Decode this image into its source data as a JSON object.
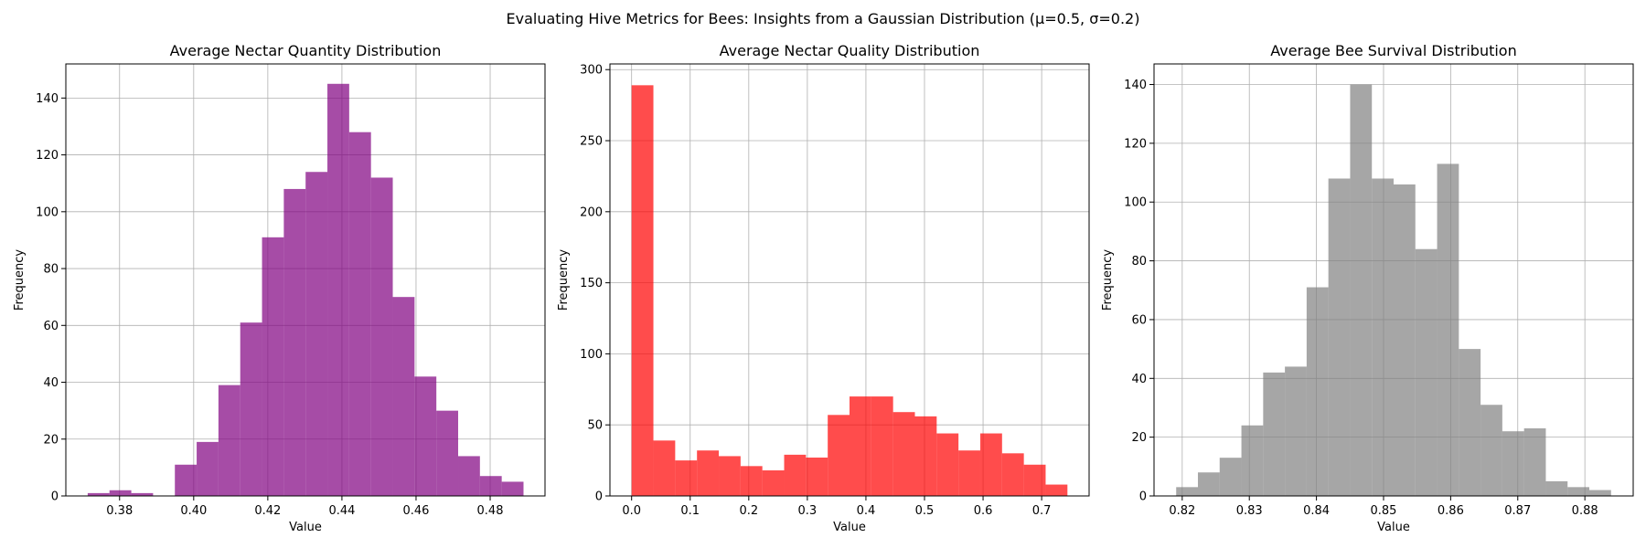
{
  "figure": {
    "suptitle": "Evaluating Hive Metrics for Bees: Insights from a Gaussian Distribution (μ=0.5, σ=0.2)"
  },
  "chart_data": [
    {
      "type": "bar",
      "title": "Average Nectar Quantity Distribution",
      "xlabel": "Value",
      "ylabel": "Frequency",
      "color": "#800080",
      "alpha": 0.7,
      "grid": true,
      "xlim": [
        0.3655,
        0.4948
      ],
      "ylim": [
        0,
        152
      ],
      "xticks": [
        0.38,
        0.4,
        0.42,
        0.44,
        0.46,
        0.48
      ],
      "xtick_labels": [
        "0.38",
        "0.40",
        "0.42",
        "0.44",
        "0.46",
        "0.48"
      ],
      "yticks": [
        0,
        20,
        40,
        60,
        80,
        100,
        120,
        140
      ],
      "bin_start": 0.3714,
      "bin_width": 0.00588,
      "counts": [
        1,
        2,
        1,
        0,
        11,
        19,
        39,
        61,
        91,
        108,
        114,
        145,
        128,
        112,
        70,
        42,
        30,
        14,
        7,
        5
      ]
    },
    {
      "type": "bar",
      "title": "Average Nectar Quality Distribution",
      "xlabel": "Value",
      "ylabel": "Frequency",
      "color": "#ff0000",
      "alpha": 0.7,
      "grid": true,
      "xlim": [
        -0.037,
        0.781
      ],
      "ylim": [
        0,
        304
      ],
      "xticks": [
        0.0,
        0.1,
        0.2,
        0.3,
        0.4,
        0.5,
        0.6,
        0.7
      ],
      "xtick_labels": [
        "0.0",
        "0.1",
        "0.2",
        "0.3",
        "0.4",
        "0.5",
        "0.6",
        "0.7"
      ],
      "yticks": [
        0,
        50,
        100,
        150,
        200,
        250,
        300
      ],
      "bin_start": 0.0,
      "bin_width": 0.0372,
      "counts": [
        289,
        39,
        25,
        32,
        28,
        21,
        18,
        29,
        27,
        57,
        70,
        70,
        59,
        56,
        44,
        32,
        44,
        30,
        22,
        8
      ]
    },
    {
      "type": "bar",
      "title": "Average Bee Survival Distribution",
      "xlabel": "Value",
      "ylabel": "Frequency",
      "color": "#808080",
      "alpha": 0.7,
      "grid": true,
      "xlim": [
        0.8158,
        0.8872
      ],
      "ylim": [
        0,
        147
      ],
      "xticks": [
        0.82,
        0.83,
        0.84,
        0.85,
        0.86,
        0.87,
        0.88
      ],
      "xtick_labels": [
        "0.82",
        "0.83",
        "0.84",
        "0.85",
        "0.86",
        "0.87",
        "0.88"
      ],
      "yticks": [
        0,
        20,
        40,
        60,
        80,
        100,
        120,
        140
      ],
      "bin_start": 0.8191,
      "bin_width": 0.00324,
      "counts": [
        3,
        8,
        13,
        24,
        42,
        44,
        71,
        108,
        140,
        108,
        106,
        84,
        113,
        50,
        31,
        22,
        23,
        5,
        3,
        2
      ]
    }
  ]
}
